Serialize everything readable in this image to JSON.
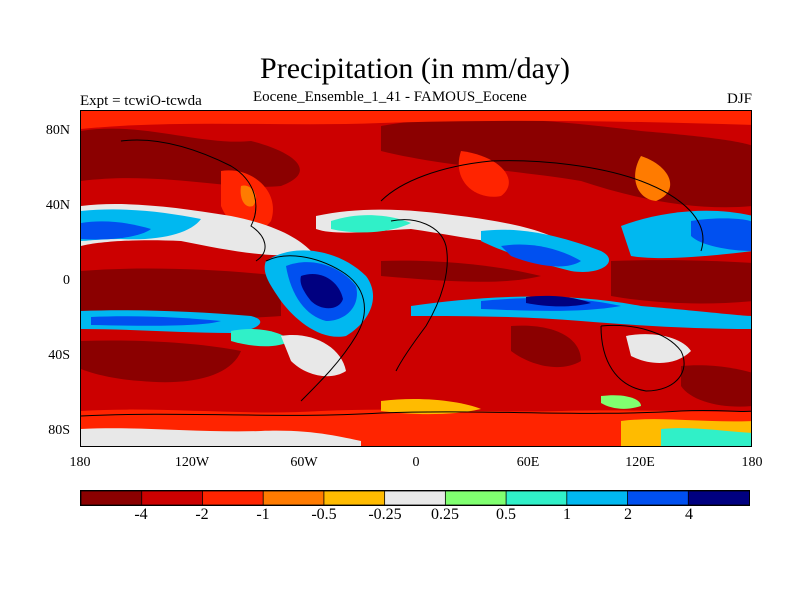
{
  "title": "Precipitation (in mm/day)",
  "subtitle_left": "Expt = tcwiO-tcwda",
  "subtitle_center": "Eocene_Ensemble_1_41 - FAMOUS_Eocene",
  "subtitle_right": "DJF",
  "y_axis_labels": [
    {
      "label": "80N",
      "lat": 80
    },
    {
      "label": "40N",
      "lat": 40
    },
    {
      "label": "0",
      "lat": 0
    },
    {
      "label": "40S",
      "lat": -40
    },
    {
      "label": "80S",
      "lat": -80
    }
  ],
  "x_axis_labels": [
    {
      "label": "180",
      "lon": -180
    },
    {
      "label": "120W",
      "lon": -120
    },
    {
      "label": "60W",
      "lon": -60
    },
    {
      "label": "0",
      "lon": 0
    },
    {
      "label": "60E",
      "lon": 60
    },
    {
      "label": "120E",
      "lon": 120
    },
    {
      "label": "180",
      "lon": 180
    }
  ],
  "colorbar": {
    "colors": [
      "#8b0000",
      "#cc0000",
      "#ff2400",
      "#ff7b00",
      "#ffbb00",
      "#e8e8e8",
      "#80ff70",
      "#30f0c8",
      "#00b8f0",
      "#0050f0",
      "#000080"
    ],
    "labels": [
      "-4",
      "-2",
      "-1",
      "-0.5",
      "-0.25",
      "0.25",
      "0.5",
      "1",
      "2",
      "4"
    ]
  },
  "map_colors": {
    "deep_red": "#8b0000",
    "red": "#cc0000",
    "orange_red": "#ff2400",
    "orange": "#ff7b00",
    "yellow": "#ffbb00",
    "white": "#e8e8e8",
    "green": "#80ff70",
    "cyan": "#30f0c8",
    "light_blue": "#00b8f0",
    "blue": "#0050f0",
    "navy": "#000080",
    "coast": "#000000"
  }
}
